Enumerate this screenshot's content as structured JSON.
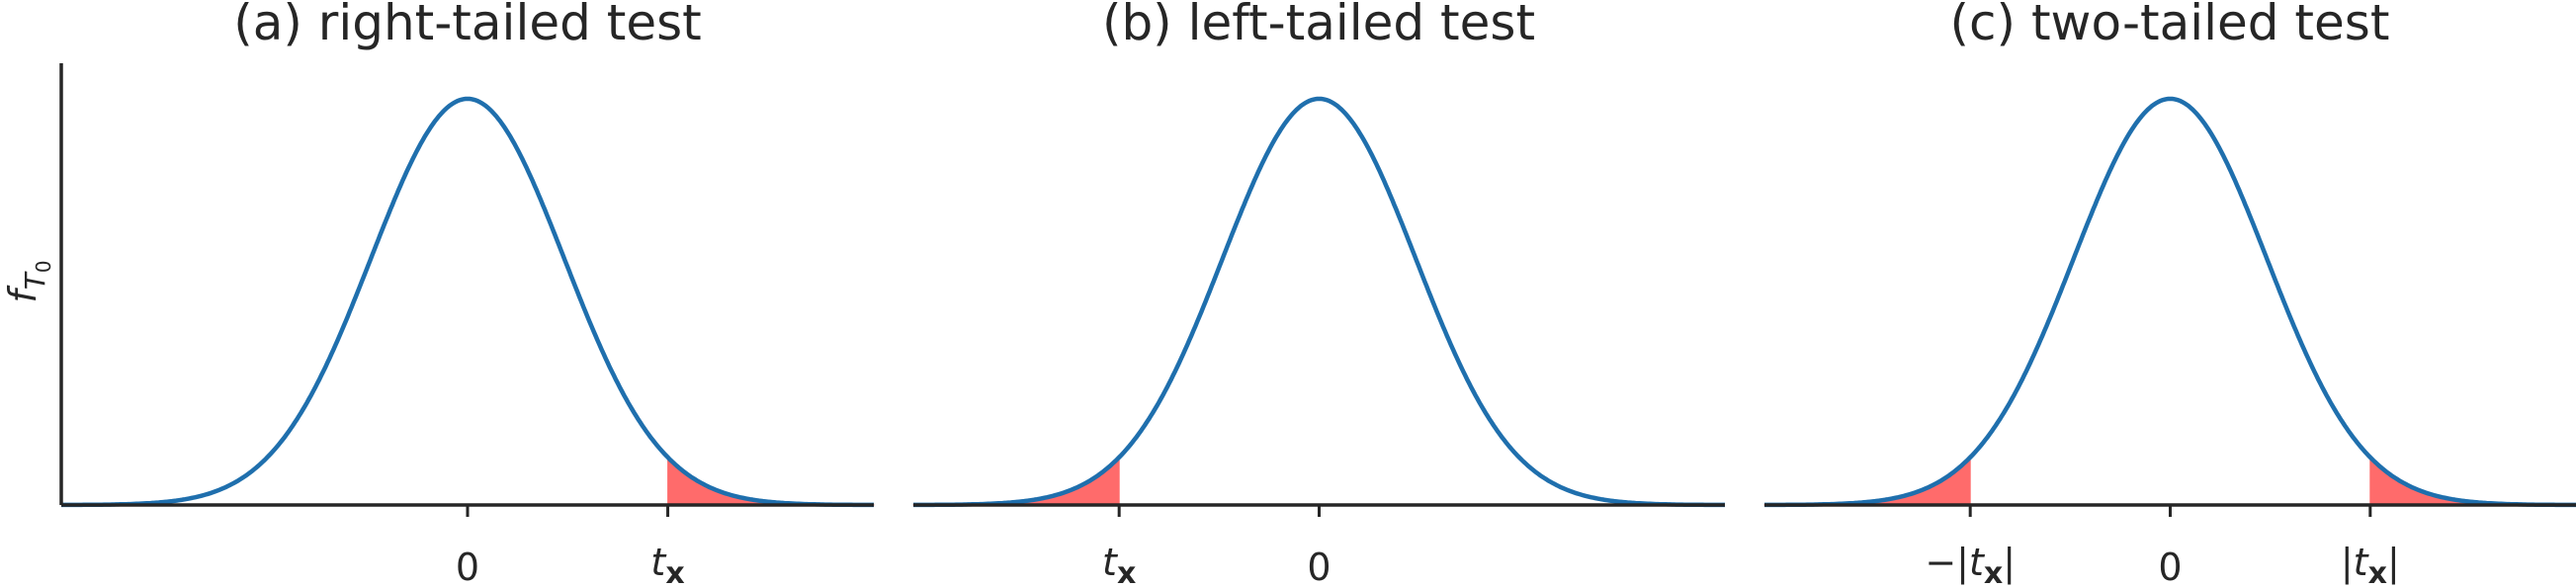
{
  "chart_data": [
    {
      "type": "area",
      "title": "(a) right-tailed test",
      "ylabel": "f_{T_0}",
      "xlim": [
        -4.2,
        4.2
      ],
      "ylim": [
        0,
        0.42
      ],
      "curve": "standard normal density",
      "curve_color": "#1f6fad",
      "shade_color": "#ff6b6b",
      "shaded_regions": [
        [
          2.07,
          4.2
        ]
      ],
      "ticks": [
        {
          "x": 0,
          "label": "0"
        },
        {
          "x": 2.07,
          "label_italic": "t",
          "label_sub": "x"
        }
      ]
    },
    {
      "type": "area",
      "title": "(b) left-tailed test",
      "xlim": [
        -4.2,
        4.2
      ],
      "ylim": [
        0,
        0.42
      ],
      "curve": "standard normal density",
      "curve_color": "#1f6fad",
      "shade_color": "#ff6b6b",
      "shaded_regions": [
        [
          -4.2,
          -2.07
        ]
      ],
      "ticks": [
        {
          "x": -2.07,
          "label_italic": "t",
          "label_sub": "x"
        },
        {
          "x": 0,
          "label": "0"
        }
      ]
    },
    {
      "type": "area",
      "title": "(c) two-tailed test",
      "xlim": [
        -4.2,
        4.2
      ],
      "ylim": [
        0,
        0.42
      ],
      "curve": "standard normal density",
      "curve_color": "#1f6fad",
      "shade_color": "#ff6b6b",
      "shaded_regions": [
        [
          -4.2,
          -2.07
        ],
        [
          2.07,
          4.2
        ]
      ],
      "ticks": [
        {
          "x": -2.07,
          "label_pre": "−|",
          "label_italic": "t",
          "label_sub": "x",
          "label_post": "|"
        },
        {
          "x": 0,
          "label": "0"
        },
        {
          "x": 2.07,
          "label_pre": "|",
          "label_italic": "t",
          "label_sub": "x",
          "label_post": "|"
        }
      ]
    }
  ]
}
